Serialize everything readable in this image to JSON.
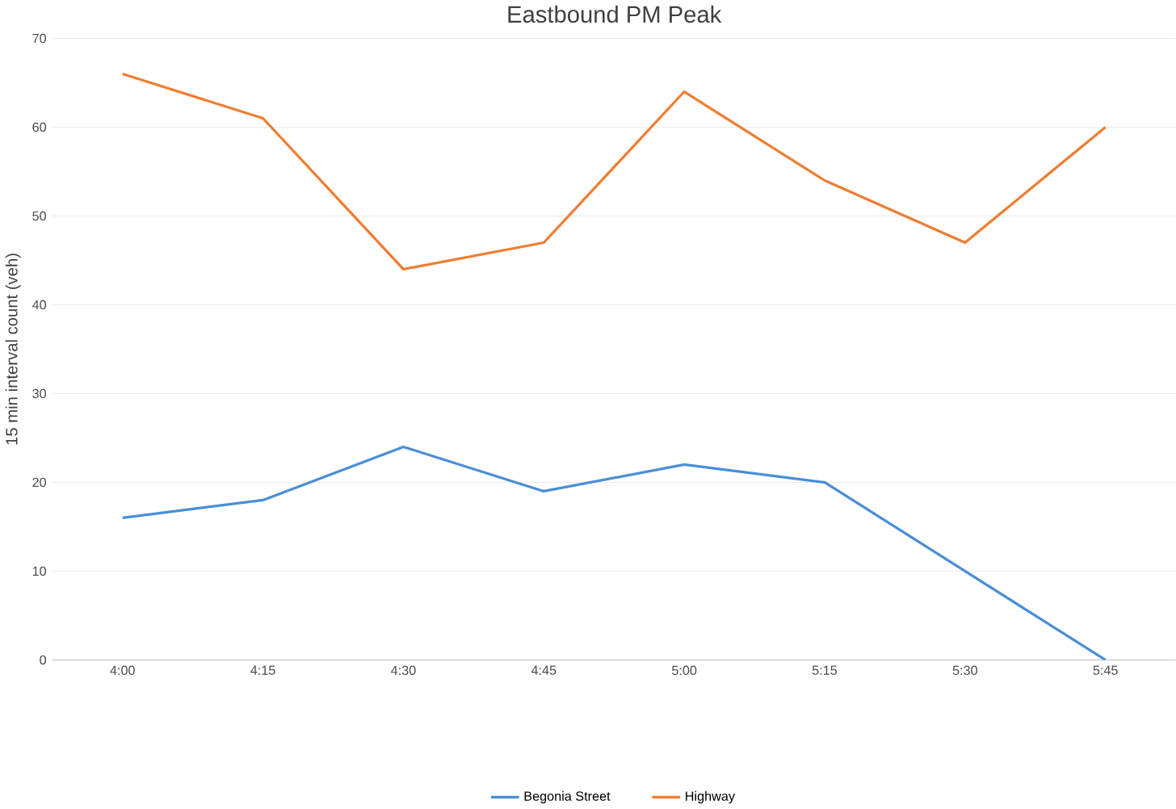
{
  "chart_data": {
    "type": "line",
    "title": "Eastbound PM Peak",
    "ylabel": "15 min interval count (veh)",
    "categories": [
      "4:00",
      "4:15",
      "4:30",
      "4:45",
      "5:00",
      "5:15",
      "5:30",
      "5:45"
    ],
    "series": [
      {
        "name": "Begonia Street",
        "color": "#4a8ed6",
        "values": [
          16,
          18,
          24,
          19,
          22,
          20,
          10,
          0
        ]
      },
      {
        "name": "Highway",
        "color": "#ef7d31",
        "values": [
          66,
          61,
          44,
          47,
          64,
          54,
          47,
          60
        ]
      }
    ],
    "ylim": [
      0,
      70
    ],
    "yticks": [
      0,
      10,
      20,
      30,
      40,
      50,
      60,
      70
    ],
    "grid": "y",
    "legend": "bottom",
    "marker": "none",
    "line_style": "solid"
  }
}
